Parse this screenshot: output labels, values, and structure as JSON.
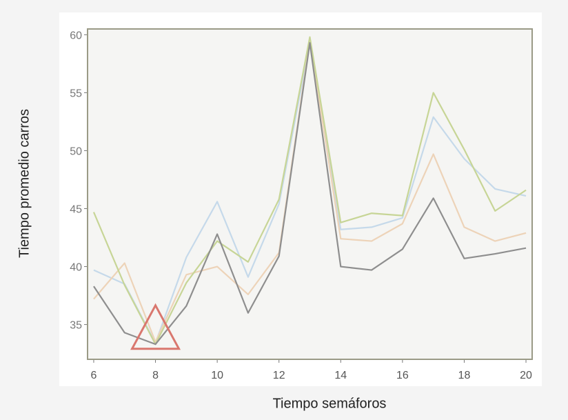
{
  "chart_data": {
    "type": "line",
    "xlabel": "Tiempo semáforos",
    "ylabel": "Tiempo promedio carros",
    "x": [
      6,
      7,
      8,
      9,
      10,
      11,
      12,
      13,
      14,
      15,
      16,
      17,
      18,
      19,
      20
    ],
    "xlim": [
      5.8,
      20.2
    ],
    "ylim": [
      32,
      60.5
    ],
    "xticks": [
      "6",
      "8",
      "10",
      "12",
      "14",
      "16",
      "18",
      "20"
    ],
    "yticks": [
      "35",
      "40",
      "45",
      "50",
      "55",
      "60"
    ],
    "grid": false,
    "series": [
      {
        "color": "#c5d9ea",
        "values": [
          39.7,
          38.5,
          33.4,
          40.8,
          45.6,
          39.1,
          45.4,
          59.3,
          43.2,
          43.4,
          44.2,
          52.9,
          49.3,
          46.7,
          46.1
        ]
      },
      {
        "color": "#edd3b8",
        "values": [
          37.2,
          40.3,
          33.5,
          39.3,
          40.0,
          37.6,
          41.2,
          59.5,
          42.4,
          42.2,
          43.7,
          49.7,
          43.4,
          42.2,
          42.9
        ]
      },
      {
        "color": "#c7d596",
        "values": [
          44.7,
          38.4,
          33.3,
          38.6,
          42.2,
          40.4,
          45.8,
          59.8,
          43.8,
          44.6,
          44.4,
          55.0,
          50.1,
          44.8,
          46.6
        ]
      },
      {
        "color": "#8e8e8e",
        "values": [
          38.3,
          34.3,
          33.3,
          36.6,
          42.8,
          36.0,
          40.9,
          59.3,
          40.0,
          39.7,
          41.5,
          45.9,
          40.7,
          41.1,
          41.6
        ]
      }
    ],
    "annotations": [
      {
        "shape": "triangle",
        "x": 8,
        "y": 33.5,
        "color": "#d9776e"
      }
    ]
  }
}
